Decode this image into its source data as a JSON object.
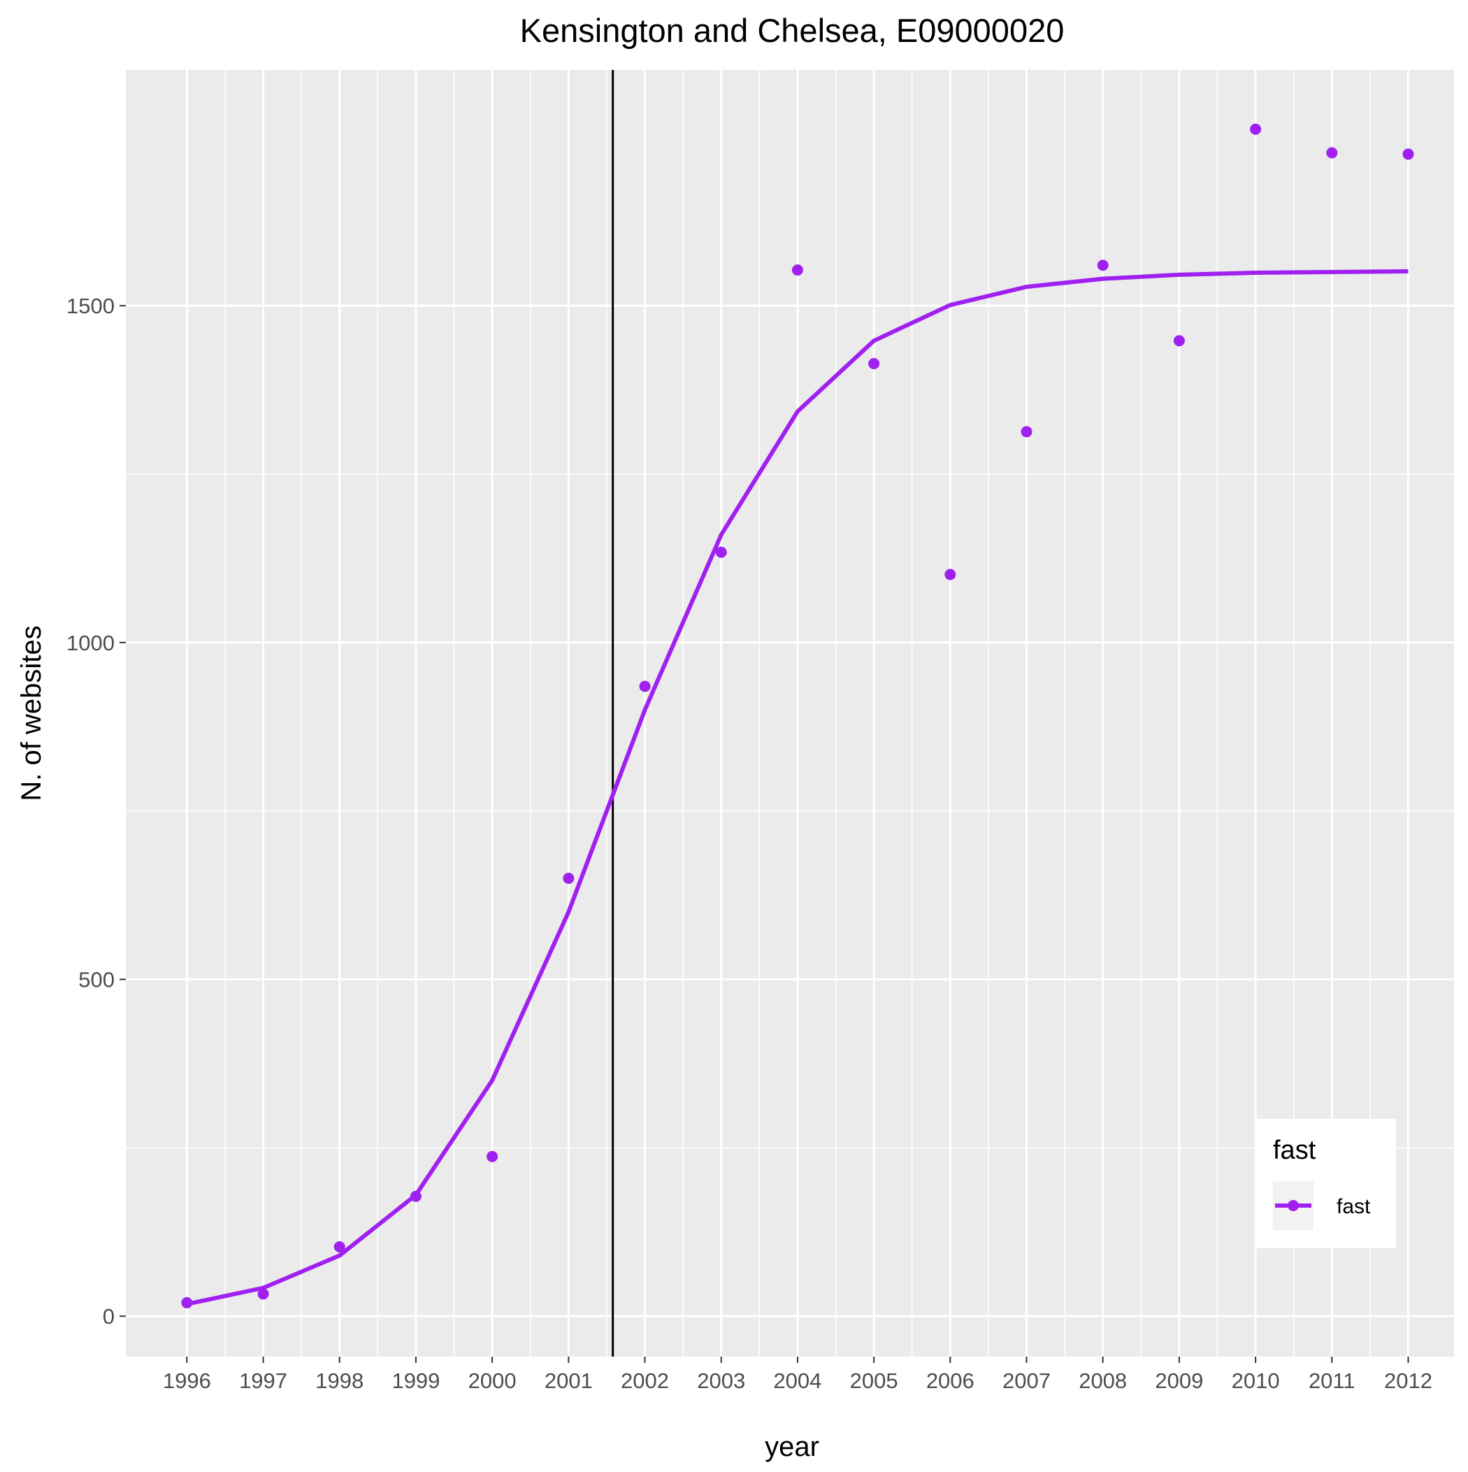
{
  "chart_data": {
    "type": "line",
    "title": "Kensington and Chelsea, E09000020",
    "xlabel": "year",
    "ylabel": "N. of websites",
    "x": [
      1996,
      1997,
      1998,
      1999,
      2000,
      2001,
      2002,
      2003,
      2004,
      2005,
      2006,
      2007,
      2008,
      2009,
      2010,
      2011,
      2012
    ],
    "xlim": [
      1995.2,
      2012.6
    ],
    "ylim": [
      -60,
      1850
    ],
    "y_ticks": [
      0,
      500,
      1000,
      1500
    ],
    "y_tick_labels": [
      "0",
      "500",
      "1000",
      "1500"
    ],
    "x_tick_labels": [
      "1996",
      "1997",
      "1998",
      "1999",
      "2000",
      "2001",
      "2002",
      "2003",
      "2004",
      "2005",
      "2006",
      "2007",
      "2008",
      "2009",
      "2010",
      "2011",
      "2012"
    ],
    "grid": true,
    "series": [
      {
        "name": "fast",
        "kind": "points",
        "values": [
          20,
          33,
          103,
          178,
          237,
          650,
          935,
          1134,
          1553,
          1414,
          1101,
          1313,
          1560,
          1448,
          1762,
          1727,
          1725
        ]
      },
      {
        "name": "fast",
        "kind": "fitted-line",
        "values": [
          18,
          42,
          90,
          180,
          350,
          600,
          900,
          1160,
          1343,
          1448,
          1501,
          1528,
          1540,
          1546,
          1549,
          1550,
          1551
        ]
      }
    ],
    "vline": {
      "x": 2001.58,
      "color": "#000000"
    },
    "legend": {
      "title": "fast",
      "entries": [
        "fast"
      ],
      "position": "bottom-right"
    },
    "colors": {
      "series": "#a020f0",
      "panel": "#ebebeb",
      "grid": "#ffffff"
    }
  }
}
